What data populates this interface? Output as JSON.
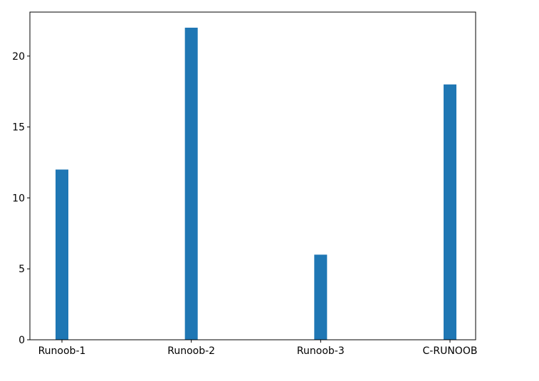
{
  "chart_data": {
    "type": "bar",
    "categories": [
      "Runoob-1",
      "Runoob-2",
      "Runoob-3",
      "C-RUNOOB"
    ],
    "values": [
      12,
      22,
      6,
      18
    ],
    "title": "",
    "xlabel": "",
    "ylabel": "",
    "ylim": [
      0,
      23.1
    ],
    "yticks": [
      0,
      5,
      10,
      15,
      20
    ],
    "grid": false,
    "legend": false,
    "bar_color": "#1f77b4"
  }
}
